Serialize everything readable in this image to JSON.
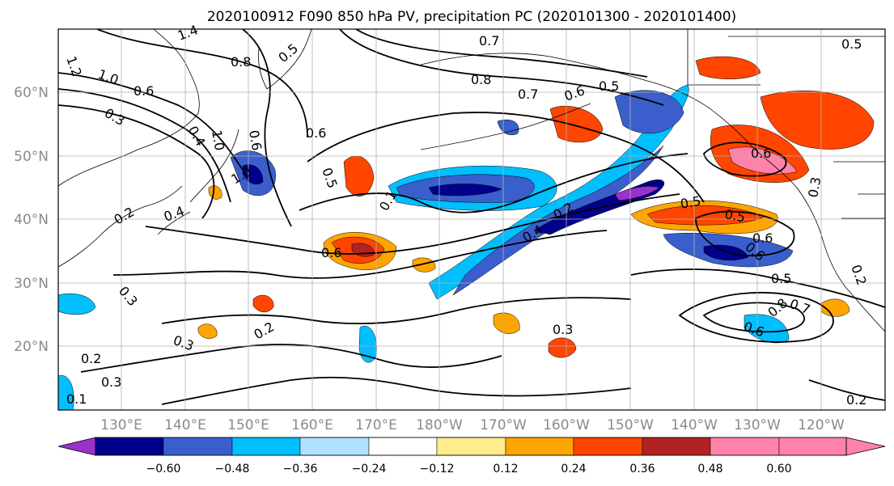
{
  "title": "2020100912 F090 850 hPa PV, precipitation PC (2020101300 - 2020101400)",
  "lat_ticks": [
    "60°N",
    "50°N",
    "40°N",
    "30°N",
    "20°N"
  ],
  "lon_ticks": [
    "130°E",
    "140°E",
    "150°E",
    "160°E",
    "170°E",
    "180°W",
    "170°W",
    "160°W",
    "150°W",
    "140°W",
    "130°W",
    "120°W"
  ],
  "colorbar": {
    "colors": [
      "#9932cc",
      "#00008b",
      "#3a5fcd",
      "#00bfff",
      "#b0e2ff",
      "#ffffff",
      "#ffec8b",
      "#ffa500",
      "#ff4500",
      "#b22222",
      "#ff82ab"
    ],
    "tick_labels": [
      "−0.60",
      "−0.48",
      "−0.36",
      "−0.24",
      "−0.12",
      "0.12",
      "0.24",
      "0.36",
      "0.48",
      "0.60"
    ]
  },
  "contour_labels": [
    "1.2",
    "1.4",
    "1.0",
    "0.6",
    "0.3",
    "0.8",
    "0.5",
    "0.7",
    "0.8",
    "0.7",
    "0.6",
    "0.5",
    "0.6",
    "0.4",
    "1.0",
    "0.6",
    "0.5",
    "0.4",
    "0.2",
    "1.0",
    "0.1",
    "0.4",
    "0.2",
    "0.6",
    "0.5",
    "0.5",
    "0.6",
    "0.6",
    "0.6",
    "0.5",
    "0.7",
    "0.8",
    "0.6",
    "0.3",
    "0.2",
    "0.3",
    "0.2",
    "0.3",
    "0.2",
    "0.3",
    "0.3",
    "0.1",
    "0.2",
    "0.5"
  ],
  "colors": {
    "gridline": "#b0b0b0",
    "coastline": "#000000",
    "contour": "#000000"
  }
}
